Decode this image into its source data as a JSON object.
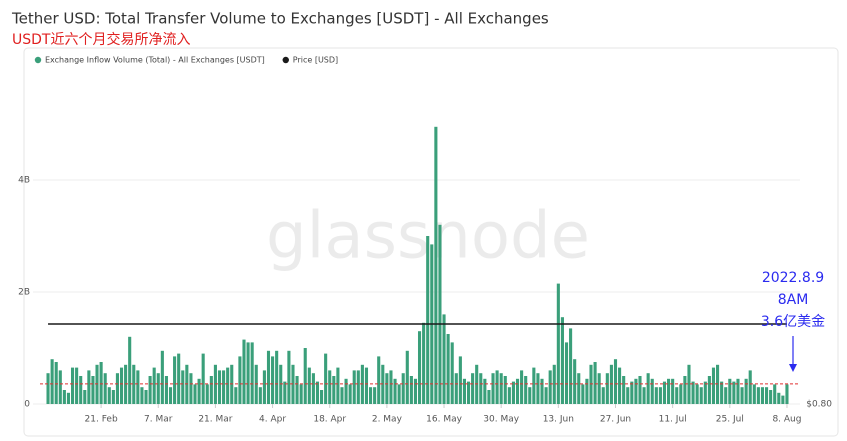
{
  "chart_data": {
    "type": "bar",
    "title": "Tether USD: Total Transfer Volume to Exchanges [USDT] - All Exchanges",
    "subtitle": "USDT近六个月交易所净流入",
    "watermark": "glassnode",
    "categories": [
      null,
      null,
      null,
      null,
      null,
      null,
      null,
      null,
      null,
      null,
      null,
      null,
      null,
      "21. Feb",
      null,
      null,
      null,
      null,
      null,
      null,
      null,
      null,
      null,
      null,
      null,
      null,
      null,
      "7. Mar",
      null,
      null,
      null,
      null,
      null,
      null,
      null,
      null,
      null,
      null,
      null,
      null,
      null,
      "21. Mar",
      null,
      null,
      null,
      null,
      null,
      null,
      null,
      null,
      null,
      null,
      null,
      null,
      null,
      "4. Apr",
      null,
      null,
      null,
      null,
      null,
      null,
      null,
      null,
      null,
      null,
      null,
      null,
      null,
      "18. Apr",
      null,
      null,
      null,
      null,
      null,
      null,
      null,
      null,
      null,
      null,
      null,
      null,
      null,
      "2. May",
      null,
      null,
      null,
      null,
      null,
      null,
      null,
      null,
      null,
      null,
      null,
      null,
      null,
      "16. May",
      null,
      null,
      null,
      null,
      null,
      null,
      null,
      null,
      null,
      null,
      null,
      null,
      null,
      "30. May",
      null,
      null,
      null,
      null,
      null,
      null,
      null,
      null,
      null,
      null,
      null,
      null,
      null,
      "13. Jun",
      null,
      null,
      null,
      null,
      null,
      null,
      null,
      null,
      null,
      null,
      null,
      null,
      null,
      "27. Jun",
      null,
      null,
      null,
      null,
      null,
      null,
      null,
      null,
      null,
      null,
      null,
      null,
      null,
      "11. Jul",
      null,
      null,
      null,
      null,
      null,
      null,
      null,
      null,
      null,
      null,
      null,
      null,
      null,
      "25. Jul",
      null,
      null,
      null,
      null,
      null,
      null,
      null,
      null,
      null,
      null,
      null,
      null,
      null,
      "8. Aug"
    ],
    "series": [
      {
        "name": "Exchange Inflow Volume (Total) - All Exchanges [USDT]",
        "color": "#3a9f7a",
        "values": [
          0.55,
          0.8,
          0.75,
          0.6,
          0.25,
          0.2,
          0.65,
          0.65,
          0.5,
          0.25,
          0.6,
          0.5,
          0.7,
          0.75,
          0.55,
          0.3,
          0.25,
          0.55,
          0.65,
          0.7,
          1.2,
          0.7,
          0.6,
          0.3,
          0.25,
          0.5,
          0.65,
          0.55,
          0.95,
          0.5,
          0.3,
          0.85,
          0.9,
          0.6,
          0.7,
          0.55,
          0.35,
          0.45,
          0.9,
          0.35,
          0.5,
          0.7,
          0.6,
          0.6,
          0.65,
          0.7,
          0.3,
          0.85,
          1.15,
          1.1,
          1.1,
          0.7,
          0.3,
          0.6,
          0.95,
          0.85,
          0.95,
          0.7,
          0.4,
          0.95,
          0.7,
          0.5,
          0.35,
          1.0,
          0.65,
          0.55,
          0.4,
          0.25,
          0.9,
          0.6,
          0.5,
          0.65,
          0.3,
          0.45,
          0.35,
          0.6,
          0.6,
          0.7,
          0.65,
          0.3,
          0.3,
          0.85,
          0.7,
          0.55,
          0.6,
          0.45,
          0.35,
          0.55,
          0.95,
          0.5,
          0.45,
          1.3,
          1.45,
          3.0,
          2.85,
          4.95,
          3.2,
          1.6,
          1.25,
          1.1,
          0.55,
          0.85,
          0.45,
          0.4,
          0.55,
          0.7,
          0.55,
          0.45,
          0.25,
          0.55,
          0.6,
          0.55,
          0.5,
          0.3,
          0.4,
          0.45,
          0.6,
          0.5,
          0.3,
          0.65,
          0.55,
          0.45,
          0.3,
          0.6,
          0.7,
          2.15,
          1.55,
          1.1,
          1.35,
          0.8,
          0.55,
          0.35,
          0.45,
          0.7,
          0.75,
          0.55,
          0.3,
          0.55,
          0.7,
          0.8,
          0.65,
          0.5,
          0.3,
          0.4,
          0.45,
          0.5,
          0.3,
          0.55,
          0.45,
          0.3,
          0.3,
          0.4,
          0.45,
          0.45,
          0.3,
          0.35,
          0.5,
          0.7,
          0.4,
          0.35,
          0.3,
          0.4,
          0.5,
          0.65,
          0.7,
          0.4,
          0.3,
          0.45,
          0.4,
          0.45,
          0.3,
          0.45,
          0.6,
          0.35,
          0.3,
          0.3,
          0.3,
          0.25,
          0.35,
          0.2,
          0.15,
          0.35
        ]
      },
      {
        "name": "Price [USD]",
        "color": "#1a1a1a",
        "type": "line",
        "axis": "y2",
        "values": [
          1,
          1,
          1,
          1,
          1,
          1,
          1,
          1,
          1,
          1,
          1,
          1,
          1,
          1,
          1,
          1,
          1,
          1,
          1,
          1,
          1,
          1,
          1,
          1,
          1,
          1,
          1,
          1,
          1,
          1,
          1,
          1,
          1,
          1,
          1,
          1,
          1,
          1,
          1,
          1,
          1,
          1,
          1,
          1,
          1,
          1,
          1,
          1,
          1,
          1,
          1,
          1,
          1,
          1,
          1,
          1,
          1,
          1,
          1,
          1,
          1,
          1,
          1,
          1,
          1,
          1,
          1,
          1,
          1,
          1,
          1,
          1,
          1,
          1,
          1,
          1,
          1,
          1,
          1,
          1,
          1,
          1,
          1,
          1,
          1,
          1,
          1,
          1,
          1,
          1,
          1,
          1,
          1,
          1,
          1,
          1,
          1,
          1,
          1,
          1,
          1,
          1,
          1,
          1,
          1,
          1,
          1,
          1,
          1,
          1,
          1,
          1,
          1,
          1,
          1,
          1,
          1,
          1,
          1,
          1,
          1,
          1,
          1,
          1,
          1,
          1,
          1,
          1,
          1,
          1,
          1,
          1,
          1,
          1,
          1,
          1,
          1,
          1,
          1,
          1,
          1,
          1,
          1,
          1,
          1,
          1,
          1,
          1,
          1,
          1,
          1,
          1,
          1,
          1,
          1,
          1,
          1,
          1,
          1,
          1,
          1,
          1,
          1,
          1,
          1,
          1,
          1,
          1,
          1,
          1,
          1,
          1,
          1,
          1,
          1,
          1,
          1,
          1,
          1,
          1,
          1,
          1
        ]
      }
    ],
    "ylim": [
      0,
      6
    ],
    "yticks": [
      0,
      {
        "value": 2,
        "label": "2B"
      },
      {
        "value": 4,
        "label": "4B"
      }
    ],
    "y2lim": [
      0.8,
      1.64
    ],
    "y2ticks": [
      {
        "value": 0.8,
        "label": "$0.80"
      }
    ],
    "grid": true,
    "reference_line": {
      "value": 0.36,
      "color": "#e03030"
    },
    "annotations": [
      "2022.8.9",
      "8AM",
      "3.6亿美金"
    ],
    "annotation_color": "#2b2bef"
  }
}
